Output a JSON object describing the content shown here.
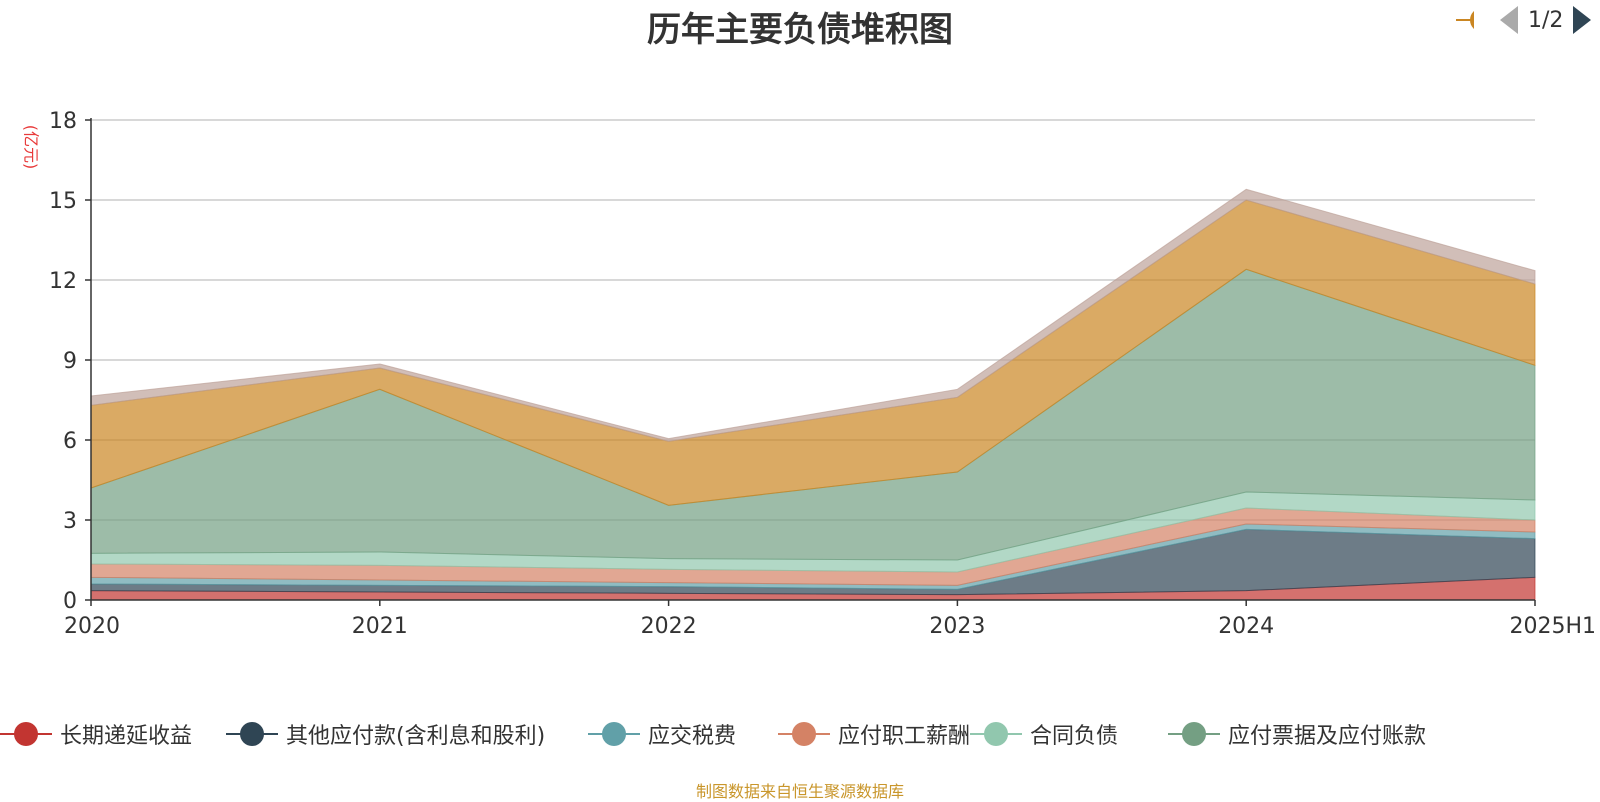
{
  "title": "历年主要负债堆积图",
  "source": "制图数据来自恒生聚源数据库",
  "pager": {
    "text": "1/2",
    "prev_icon": "triangle-left-icon",
    "next_icon": "triangle-right-icon"
  },
  "chart_data": {
    "type": "area",
    "stacked": true,
    "title": "历年主要负债堆积图",
    "ylabel": "(亿元)",
    "xlabel": "",
    "ylim": [
      0,
      18
    ],
    "yticks": [
      "0",
      "3",
      "6",
      "9",
      "12",
      "15",
      "18"
    ],
    "grid": true,
    "legend_position": "bottom",
    "categories": [
      "2020",
      "2021",
      "2022",
      "2023",
      "2024",
      "2025H1"
    ],
    "series": [
      {
        "name": "长期递延收益",
        "color": "#c23531",
        "values": [
          0.35,
          0.3,
          0.25,
          0.2,
          0.35,
          0.85
        ]
      },
      {
        "name": "其他应付款(含利息和股利)",
        "color": "#2f4554",
        "values": [
          0.25,
          0.25,
          0.25,
          0.2,
          2.3,
          1.45
        ]
      },
      {
        "name": "应交税费",
        "color": "#61a0a8",
        "values": [
          0.25,
          0.2,
          0.15,
          0.15,
          0.2,
          0.25
        ]
      },
      {
        "name": "应付职工薪酬",
        "color": "#d48265",
        "values": [
          0.5,
          0.55,
          0.5,
          0.5,
          0.6,
          0.45
        ]
      },
      {
        "name": "合同负债",
        "color": "#91c7ae",
        "values": [
          0.4,
          0.5,
          0.4,
          0.45,
          0.6,
          0.75
        ]
      },
      {
        "name": "应付票据及应付账款",
        "color": "#749f83",
        "values": [
          2.45,
          6.1,
          2.0,
          3.3,
          8.35,
          5.05
        ]
      },
      {
        "name": "",
        "color": "#ca8622",
        "values": [
          3.1,
          0.8,
          2.4,
          2.8,
          2.6,
          3.05
        ]
      },
      {
        "name": "",
        "color": "#bda29a",
        "values": [
          0.35,
          0.15,
          0.1,
          0.3,
          0.4,
          0.5
        ]
      }
    ]
  }
}
